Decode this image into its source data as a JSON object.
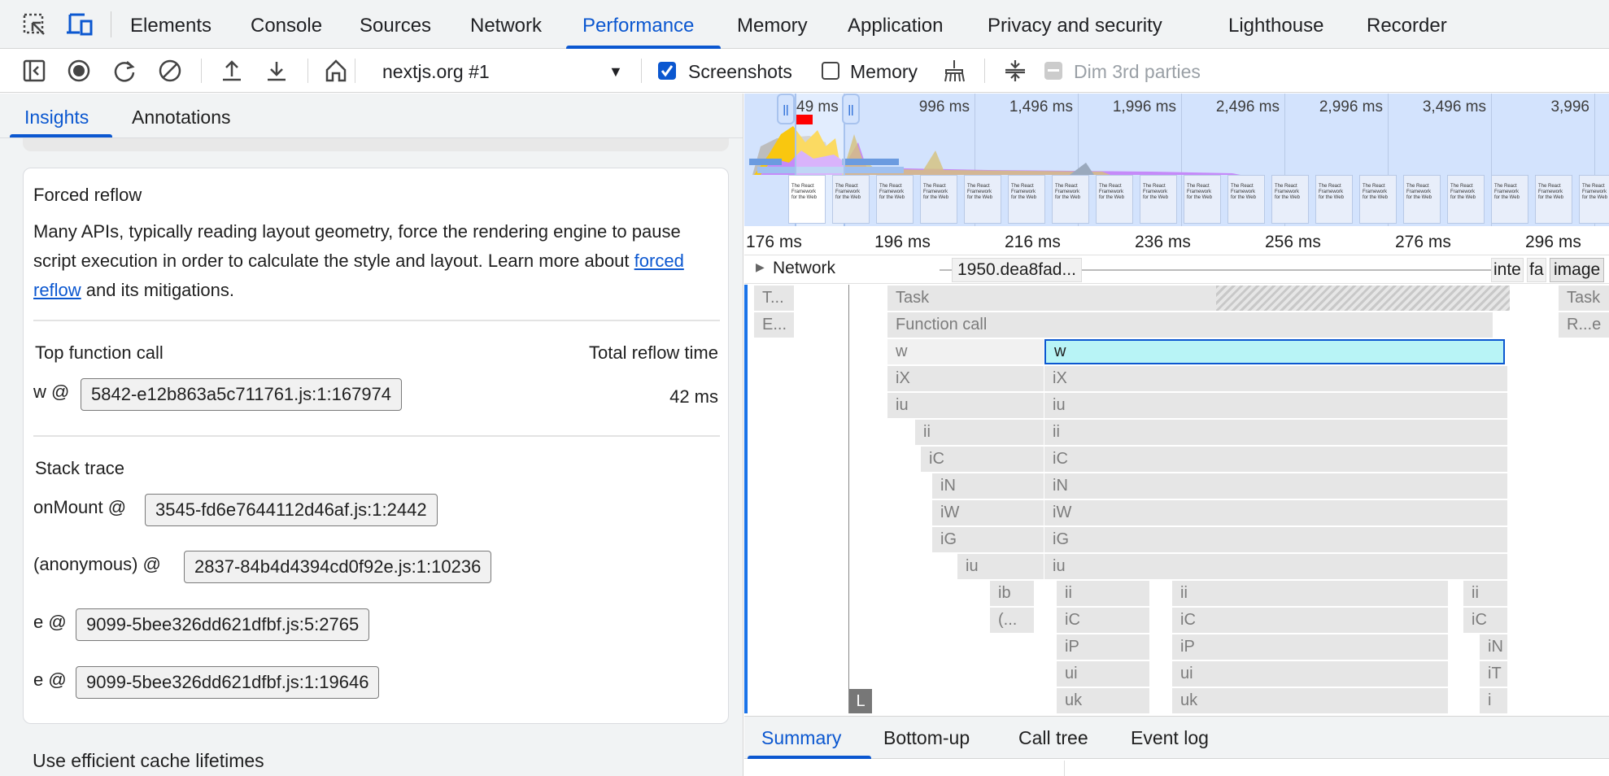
{
  "main_tabs": [
    {
      "label": "Elements"
    },
    {
      "label": "Console"
    },
    {
      "label": "Sources"
    },
    {
      "label": "Network"
    },
    {
      "label": "Performance",
      "active": true
    },
    {
      "label": "Memory"
    },
    {
      "label": "Application"
    },
    {
      "label": "Privacy and security"
    },
    {
      "label": "Lighthouse"
    },
    {
      "label": "Recorder"
    }
  ],
  "toolbar": {
    "recording_select": "nextjs.org #1",
    "screenshots_label": "Screenshots",
    "screenshots_checked": true,
    "memory_label": "Memory",
    "memory_checked": false,
    "dim_label": "Dim 3rd parties",
    "dim_checked": false
  },
  "sidebar": {
    "tabs": [
      {
        "label": "Insights",
        "active": true
      },
      {
        "label": "Annotations"
      }
    ],
    "insight": {
      "title": "Forced reflow",
      "desc_before": "Many APIs, typically reading layout geometry, force the rendering engine to pause script execution in order to calculate the style and layout. Learn more about ",
      "link": "forced reflow",
      "desc_after": " and its mitigations.",
      "top_call_header": "Top function call",
      "total_header": "Total reflow time",
      "top_call_fn": "w @",
      "top_call_src": "5842-e12b863a5c711761.js:1:167974",
      "total_value": "42 ms",
      "stack_header": "Stack trace",
      "stack": [
        {
          "fn": "onMount @",
          "src": "3545-fd6e7644112d46af.js:1:2442"
        },
        {
          "fn": "(anonymous) @",
          "src": "2837-84b4d4394cd0f92e.js:1:10236"
        },
        {
          "fn": "e @",
          "src": "9099-5bee326dd621dfbf.js:5:2765"
        },
        {
          "fn": "e @",
          "src": "9099-5bee326dd621dfbf.js:1:19646"
        }
      ]
    },
    "next_insight_title": "Use efficient cache lifetimes"
  },
  "overview": {
    "ticks": [
      "49 ms",
      "996 ms",
      "1,496 ms",
      "1,996 ms",
      "2,496 ms",
      "2,996 ms",
      "3,496 ms",
      "3,996"
    ],
    "thumbnail_text": "The React Framework for the Web",
    "thumbnail_count": 20
  },
  "timeline": {
    "ticks": [
      "176 ms",
      "196 ms",
      "216 ms",
      "236 ms",
      "256 ms",
      "276 ms",
      "296 ms"
    ],
    "network_label": "Network",
    "network_requests": [
      "1950.dea8fad...",
      "inte",
      "fa",
      "image"
    ],
    "marker": "L",
    "flame_rows": [
      [
        "T...",
        "Task",
        "Task"
      ],
      [
        "E...",
        "Function call",
        "R...e"
      ],
      [
        "w",
        "w"
      ],
      [
        "iX",
        "iX"
      ],
      [
        "iu",
        "iu"
      ],
      [
        "ii",
        "ii"
      ],
      [
        "iC",
        "iC"
      ],
      [
        "iN",
        "iN"
      ],
      [
        "iW",
        "iW"
      ],
      [
        "iG",
        "iG"
      ],
      [
        "iu",
        "iu"
      ],
      [
        "ib",
        "ii",
        "ii",
        "ii"
      ],
      [
        "(...",
        "iC",
        "iC",
        "iC"
      ],
      [
        "iP",
        "iP",
        "iN"
      ],
      [
        "ui",
        "ui",
        "iT"
      ],
      [
        "uk",
        "uk",
        "i"
      ]
    ],
    "selected_color": "#b8f4f6"
  },
  "bottom_tabs": [
    {
      "label": "Summary",
      "active": true
    },
    {
      "label": "Bottom-up"
    },
    {
      "label": "Call tree"
    },
    {
      "label": "Event log"
    }
  ],
  "colors": {
    "accent": "#0b57d0",
    "scripting": "#f9c70f",
    "rendering": "#c58af9",
    "overview_bg": "#d3e3fd"
  }
}
